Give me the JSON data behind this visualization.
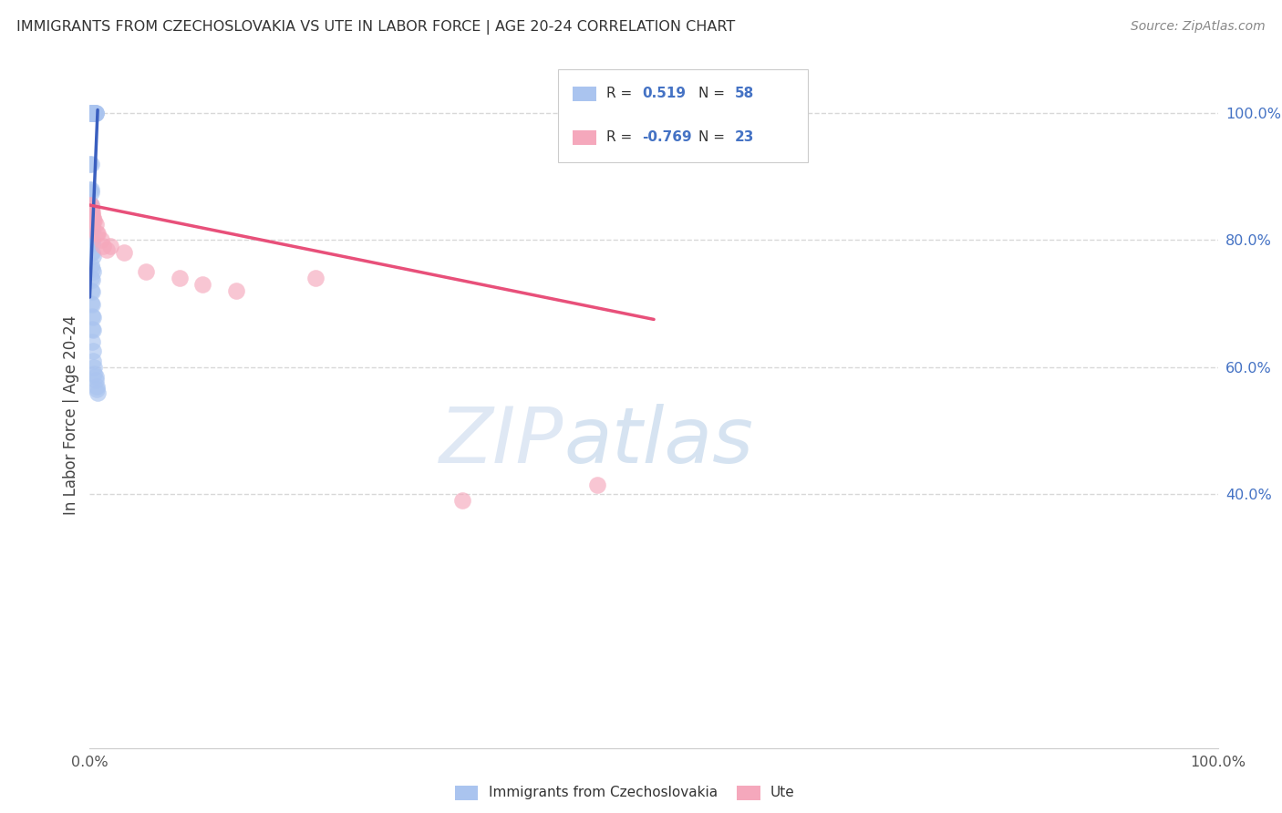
{
  "title": "IMMIGRANTS FROM CZECHOSLOVAKIA VS UTE IN LABOR FORCE | AGE 20-24 CORRELATION CHART",
  "source": "Source: ZipAtlas.com",
  "ylabel": "In Labor Force | Age 20-24",
  "watermark_zip": "ZIP",
  "watermark_atlas": "atlas",
  "legend_blue_r": "0.519",
  "legend_blue_n": "58",
  "legend_pink_r": "-0.769",
  "legend_pink_n": "23",
  "blue_color": "#aac4ef",
  "blue_line_color": "#3a5fbf",
  "pink_color": "#f5a8bc",
  "pink_line_color": "#e8507a",
  "blue_scatter": [
    [
      0.0,
      1.0
    ],
    [
      0.001,
      1.0
    ],
    [
      0.001,
      1.0
    ],
    [
      0.002,
      1.0
    ],
    [
      0.002,
      1.0
    ],
    [
      0.003,
      1.0
    ],
    [
      0.003,
      1.0
    ],
    [
      0.003,
      1.0
    ],
    [
      0.004,
      1.0
    ],
    [
      0.004,
      1.0
    ],
    [
      0.004,
      1.0
    ],
    [
      0.004,
      1.0
    ],
    [
      0.005,
      1.0
    ],
    [
      0.005,
      1.0
    ],
    [
      0.005,
      1.0
    ],
    [
      0.0,
      0.92
    ],
    [
      0.001,
      0.92
    ],
    [
      0.0,
      0.88
    ],
    [
      0.001,
      0.88
    ],
    [
      0.001,
      0.875
    ],
    [
      0.0,
      0.86
    ],
    [
      0.001,
      0.855
    ],
    [
      0.001,
      0.85
    ],
    [
      0.001,
      0.84
    ],
    [
      0.001,
      0.835
    ],
    [
      0.002,
      0.835
    ],
    [
      0.001,
      0.82
    ],
    [
      0.002,
      0.82
    ],
    [
      0.002,
      0.815
    ],
    [
      0.001,
      0.8
    ],
    [
      0.002,
      0.8
    ],
    [
      0.002,
      0.795
    ],
    [
      0.001,
      0.78
    ],
    [
      0.002,
      0.78
    ],
    [
      0.003,
      0.775
    ],
    [
      0.001,
      0.76
    ],
    [
      0.002,
      0.755
    ],
    [
      0.003,
      0.75
    ],
    [
      0.001,
      0.74
    ],
    [
      0.002,
      0.738
    ],
    [
      0.001,
      0.72
    ],
    [
      0.002,
      0.718
    ],
    [
      0.001,
      0.7
    ],
    [
      0.002,
      0.698
    ],
    [
      0.002,
      0.68
    ],
    [
      0.003,
      0.678
    ],
    [
      0.002,
      0.66
    ],
    [
      0.003,
      0.658
    ],
    [
      0.002,
      0.64
    ],
    [
      0.003,
      0.625
    ],
    [
      0.003,
      0.61
    ],
    [
      0.004,
      0.6
    ],
    [
      0.004,
      0.59
    ],
    [
      0.005,
      0.585
    ],
    [
      0.005,
      0.58
    ],
    [
      0.006,
      0.57
    ],
    [
      0.006,
      0.565
    ],
    [
      0.007,
      0.56
    ]
  ],
  "pink_scatter": [
    [
      0.0,
      0.855
    ],
    [
      0.001,
      0.855
    ],
    [
      0.001,
      0.85
    ],
    [
      0.002,
      0.845
    ],
    [
      0.002,
      0.84
    ],
    [
      0.003,
      0.835
    ],
    [
      0.003,
      0.83
    ],
    [
      0.004,
      0.83
    ],
    [
      0.005,
      0.825
    ],
    [
      0.006,
      0.81
    ],
    [
      0.007,
      0.81
    ],
    [
      0.01,
      0.8
    ],
    [
      0.012,
      0.79
    ],
    [
      0.015,
      0.785
    ],
    [
      0.018,
      0.79
    ],
    [
      0.03,
      0.78
    ],
    [
      0.05,
      0.75
    ],
    [
      0.08,
      0.74
    ],
    [
      0.1,
      0.73
    ],
    [
      0.13,
      0.72
    ],
    [
      0.2,
      0.74
    ],
    [
      0.33,
      0.39
    ],
    [
      0.45,
      0.415
    ]
  ],
  "blue_trend_x": [
    0.0,
    0.007
  ],
  "blue_trend_y": [
    0.71,
    1.005
  ],
  "pink_trend_x": [
    0.0,
    0.5
  ],
  "pink_trend_y": [
    0.855,
    0.675
  ],
  "xlim": [
    0.0,
    1.0
  ],
  "ylim": [
    0.0,
    1.05
  ],
  "ytick_positions": [
    1.0,
    0.8,
    0.6,
    0.4
  ],
  "ytick_labels": [
    "100.0%",
    "80.0%",
    "60.0%",
    "40.0%"
  ],
  "xtick_positions": [
    0.0,
    1.0
  ],
  "xtick_labels": [
    "0.0%",
    "100.0%"
  ],
  "grid_color": "#d8d8d8",
  "background_color": "#ffffff"
}
